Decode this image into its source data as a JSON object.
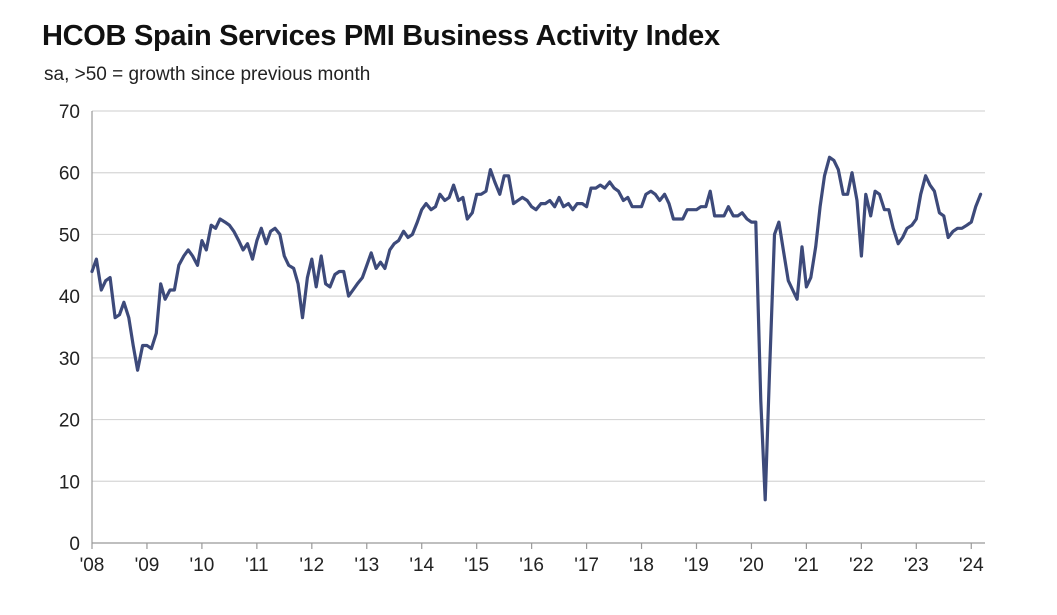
{
  "chart_data": {
    "type": "line",
    "title": "HCOB Spain Services PMI Business Activity Index",
    "subtitle": "sa, >50 = growth since previous month",
    "xlabel": "",
    "ylabel": "",
    "ylim": [
      0,
      70
    ],
    "xlim": [
      2008,
      2024.25
    ],
    "grid": true,
    "legend": "none",
    "y_ticks": [
      0,
      10,
      20,
      30,
      40,
      50,
      60,
      70
    ],
    "x_ticks": [
      {
        "value": 2008,
        "label": "'08"
      },
      {
        "value": 2009,
        "label": "'09"
      },
      {
        "value": 2010,
        "label": "'10"
      },
      {
        "value": 2011,
        "label": "'11"
      },
      {
        "value": 2012,
        "label": "'12"
      },
      {
        "value": 2013,
        "label": "'13"
      },
      {
        "value": 2014,
        "label": "'14"
      },
      {
        "value": 2015,
        "label": "'15"
      },
      {
        "value": 2016,
        "label": "'16"
      },
      {
        "value": 2017,
        "label": "'17"
      },
      {
        "value": 2018,
        "label": "'18"
      },
      {
        "value": 2019,
        "label": "'19"
      },
      {
        "value": 2020,
        "label": "'20"
      },
      {
        "value": 2021,
        "label": "'21"
      },
      {
        "value": 2022,
        "label": "'22"
      },
      {
        "value": 2023,
        "label": "'23"
      },
      {
        "value": 2024,
        "label": "'24"
      }
    ],
    "series": [
      {
        "color": "#3d4a7a",
        "x": [
          2008.0,
          2008.08,
          2008.17,
          2008.25,
          2008.33,
          2008.42,
          2008.5,
          2008.58,
          2008.67,
          2008.75,
          2008.83,
          2008.92,
          2009.0,
          2009.08,
          2009.17,
          2009.25,
          2009.33,
          2009.42,
          2009.5,
          2009.58,
          2009.67,
          2009.75,
          2009.83,
          2009.92,
          2010.0,
          2010.08,
          2010.17,
          2010.25,
          2010.33,
          2010.42,
          2010.5,
          2010.58,
          2010.67,
          2010.75,
          2010.83,
          2010.92,
          2011.0,
          2011.08,
          2011.17,
          2011.25,
          2011.33,
          2011.42,
          2011.5,
          2011.58,
          2011.67,
          2011.75,
          2011.83,
          2011.92,
          2012.0,
          2012.08,
          2012.17,
          2012.25,
          2012.33,
          2012.42,
          2012.5,
          2012.58,
          2012.67,
          2012.75,
          2012.83,
          2012.92,
          2013.0,
          2013.08,
          2013.17,
          2013.25,
          2013.33,
          2013.42,
          2013.5,
          2013.58,
          2013.67,
          2013.75,
          2013.83,
          2013.92,
          2014.0,
          2014.08,
          2014.17,
          2014.25,
          2014.33,
          2014.42,
          2014.5,
          2014.58,
          2014.67,
          2014.75,
          2014.83,
          2014.92,
          2015.0,
          2015.08,
          2015.17,
          2015.25,
          2015.33,
          2015.42,
          2015.5,
          2015.58,
          2015.67,
          2015.75,
          2015.83,
          2015.92,
          2016.0,
          2016.08,
          2016.17,
          2016.25,
          2016.33,
          2016.42,
          2016.5,
          2016.58,
          2016.67,
          2016.75,
          2016.83,
          2016.92,
          2017.0,
          2017.08,
          2017.17,
          2017.25,
          2017.33,
          2017.42,
          2017.5,
          2017.58,
          2017.67,
          2017.75,
          2017.83,
          2017.92,
          2018.0,
          2018.08,
          2018.17,
          2018.25,
          2018.33,
          2018.42,
          2018.5,
          2018.58,
          2018.67,
          2018.75,
          2018.83,
          2018.92,
          2019.0,
          2019.08,
          2019.17,
          2019.25,
          2019.33,
          2019.42,
          2019.5,
          2019.58,
          2019.67,
          2019.75,
          2019.83,
          2019.92,
          2020.0,
          2020.08,
          2020.17,
          2020.25,
          2020.33,
          2020.42,
          2020.5,
          2020.58,
          2020.67,
          2020.75,
          2020.83,
          2020.92,
          2021.0,
          2021.08,
          2021.17,
          2021.25,
          2021.33,
          2021.42,
          2021.5,
          2021.58,
          2021.67,
          2021.75,
          2021.83,
          2021.92,
          2022.0,
          2022.08,
          2022.17,
          2022.25,
          2022.33,
          2022.42,
          2022.5,
          2022.58,
          2022.67,
          2022.75,
          2022.83,
          2022.92,
          2023.0,
          2023.08,
          2023.17,
          2023.25,
          2023.33,
          2023.42,
          2023.5,
          2023.58,
          2023.67,
          2023.75,
          2023.83,
          2023.92,
          2024.0,
          2024.08,
          2024.17
        ],
        "values": [
          44.0,
          46.0,
          41.0,
          42.5,
          43.0,
          36.5,
          37.0,
          39.0,
          36.5,
          32.0,
          28.0,
          32.0,
          32.0,
          31.5,
          34.0,
          42.0,
          39.5,
          41.0,
          41.0,
          45.0,
          46.5,
          47.5,
          46.5,
          45.0,
          49.0,
          47.5,
          51.5,
          51.0,
          52.5,
          52.0,
          51.5,
          50.5,
          49.0,
          47.5,
          48.5,
          46.0,
          49.0,
          51.0,
          48.5,
          50.5,
          51.0,
          50.0,
          46.5,
          45.0,
          44.5,
          42.0,
          36.5,
          43.0,
          46.0,
          41.5,
          46.5,
          42.0,
          41.5,
          43.5,
          44.0,
          44.0,
          40.0,
          41.0,
          42.0,
          43.0,
          45.0,
          47.0,
          44.5,
          45.5,
          44.5,
          47.5,
          48.5,
          49.0,
          50.5,
          49.5,
          50.0,
          52.0,
          54.0,
          55.0,
          54.0,
          54.5,
          56.5,
          55.5,
          56.0,
          58.0,
          55.5,
          56.0,
          52.5,
          53.5,
          56.5,
          56.5,
          57.0,
          60.5,
          58.5,
          56.5,
          59.5,
          59.5,
          55.0,
          55.5,
          56.0,
          55.5,
          54.5,
          54.0,
          55.0,
          55.0,
          55.5,
          54.5,
          56.0,
          54.5,
          55.0,
          54.0,
          55.0,
          55.0,
          54.5,
          57.5,
          57.5,
          58.0,
          57.5,
          58.5,
          57.5,
          57.0,
          55.5,
          56.0,
          54.5,
          54.5,
          54.5,
          56.5,
          57.0,
          56.5,
          55.5,
          56.5,
          55.0,
          52.5,
          52.5,
          52.5,
          54.0,
          54.0,
          54.0,
          54.5,
          54.5,
          57.0,
          53.0,
          53.0,
          53.0,
          54.5,
          53.0,
          53.0,
          53.5,
          52.5,
          52.0,
          52.0,
          23.0,
          7.0,
          28.0,
          50.0,
          52.0,
          47.5,
          42.5,
          41.0,
          39.5,
          48.0,
          41.5,
          43.0,
          48.0,
          54.5,
          59.5,
          62.5,
          62.0,
          60.5,
          56.5,
          56.5,
          60.0,
          55.5,
          46.5,
          56.5,
          53.0,
          57.0,
          56.5,
          54.0,
          54.0,
          51.0,
          48.5,
          49.5,
          51.0,
          51.5,
          52.5,
          56.5,
          59.5,
          58.0,
          57.0,
          53.5,
          53.0,
          49.5,
          50.5,
          51.0,
          51.0,
          51.5,
          52.0,
          54.5,
          56.5
        ]
      }
    ]
  }
}
